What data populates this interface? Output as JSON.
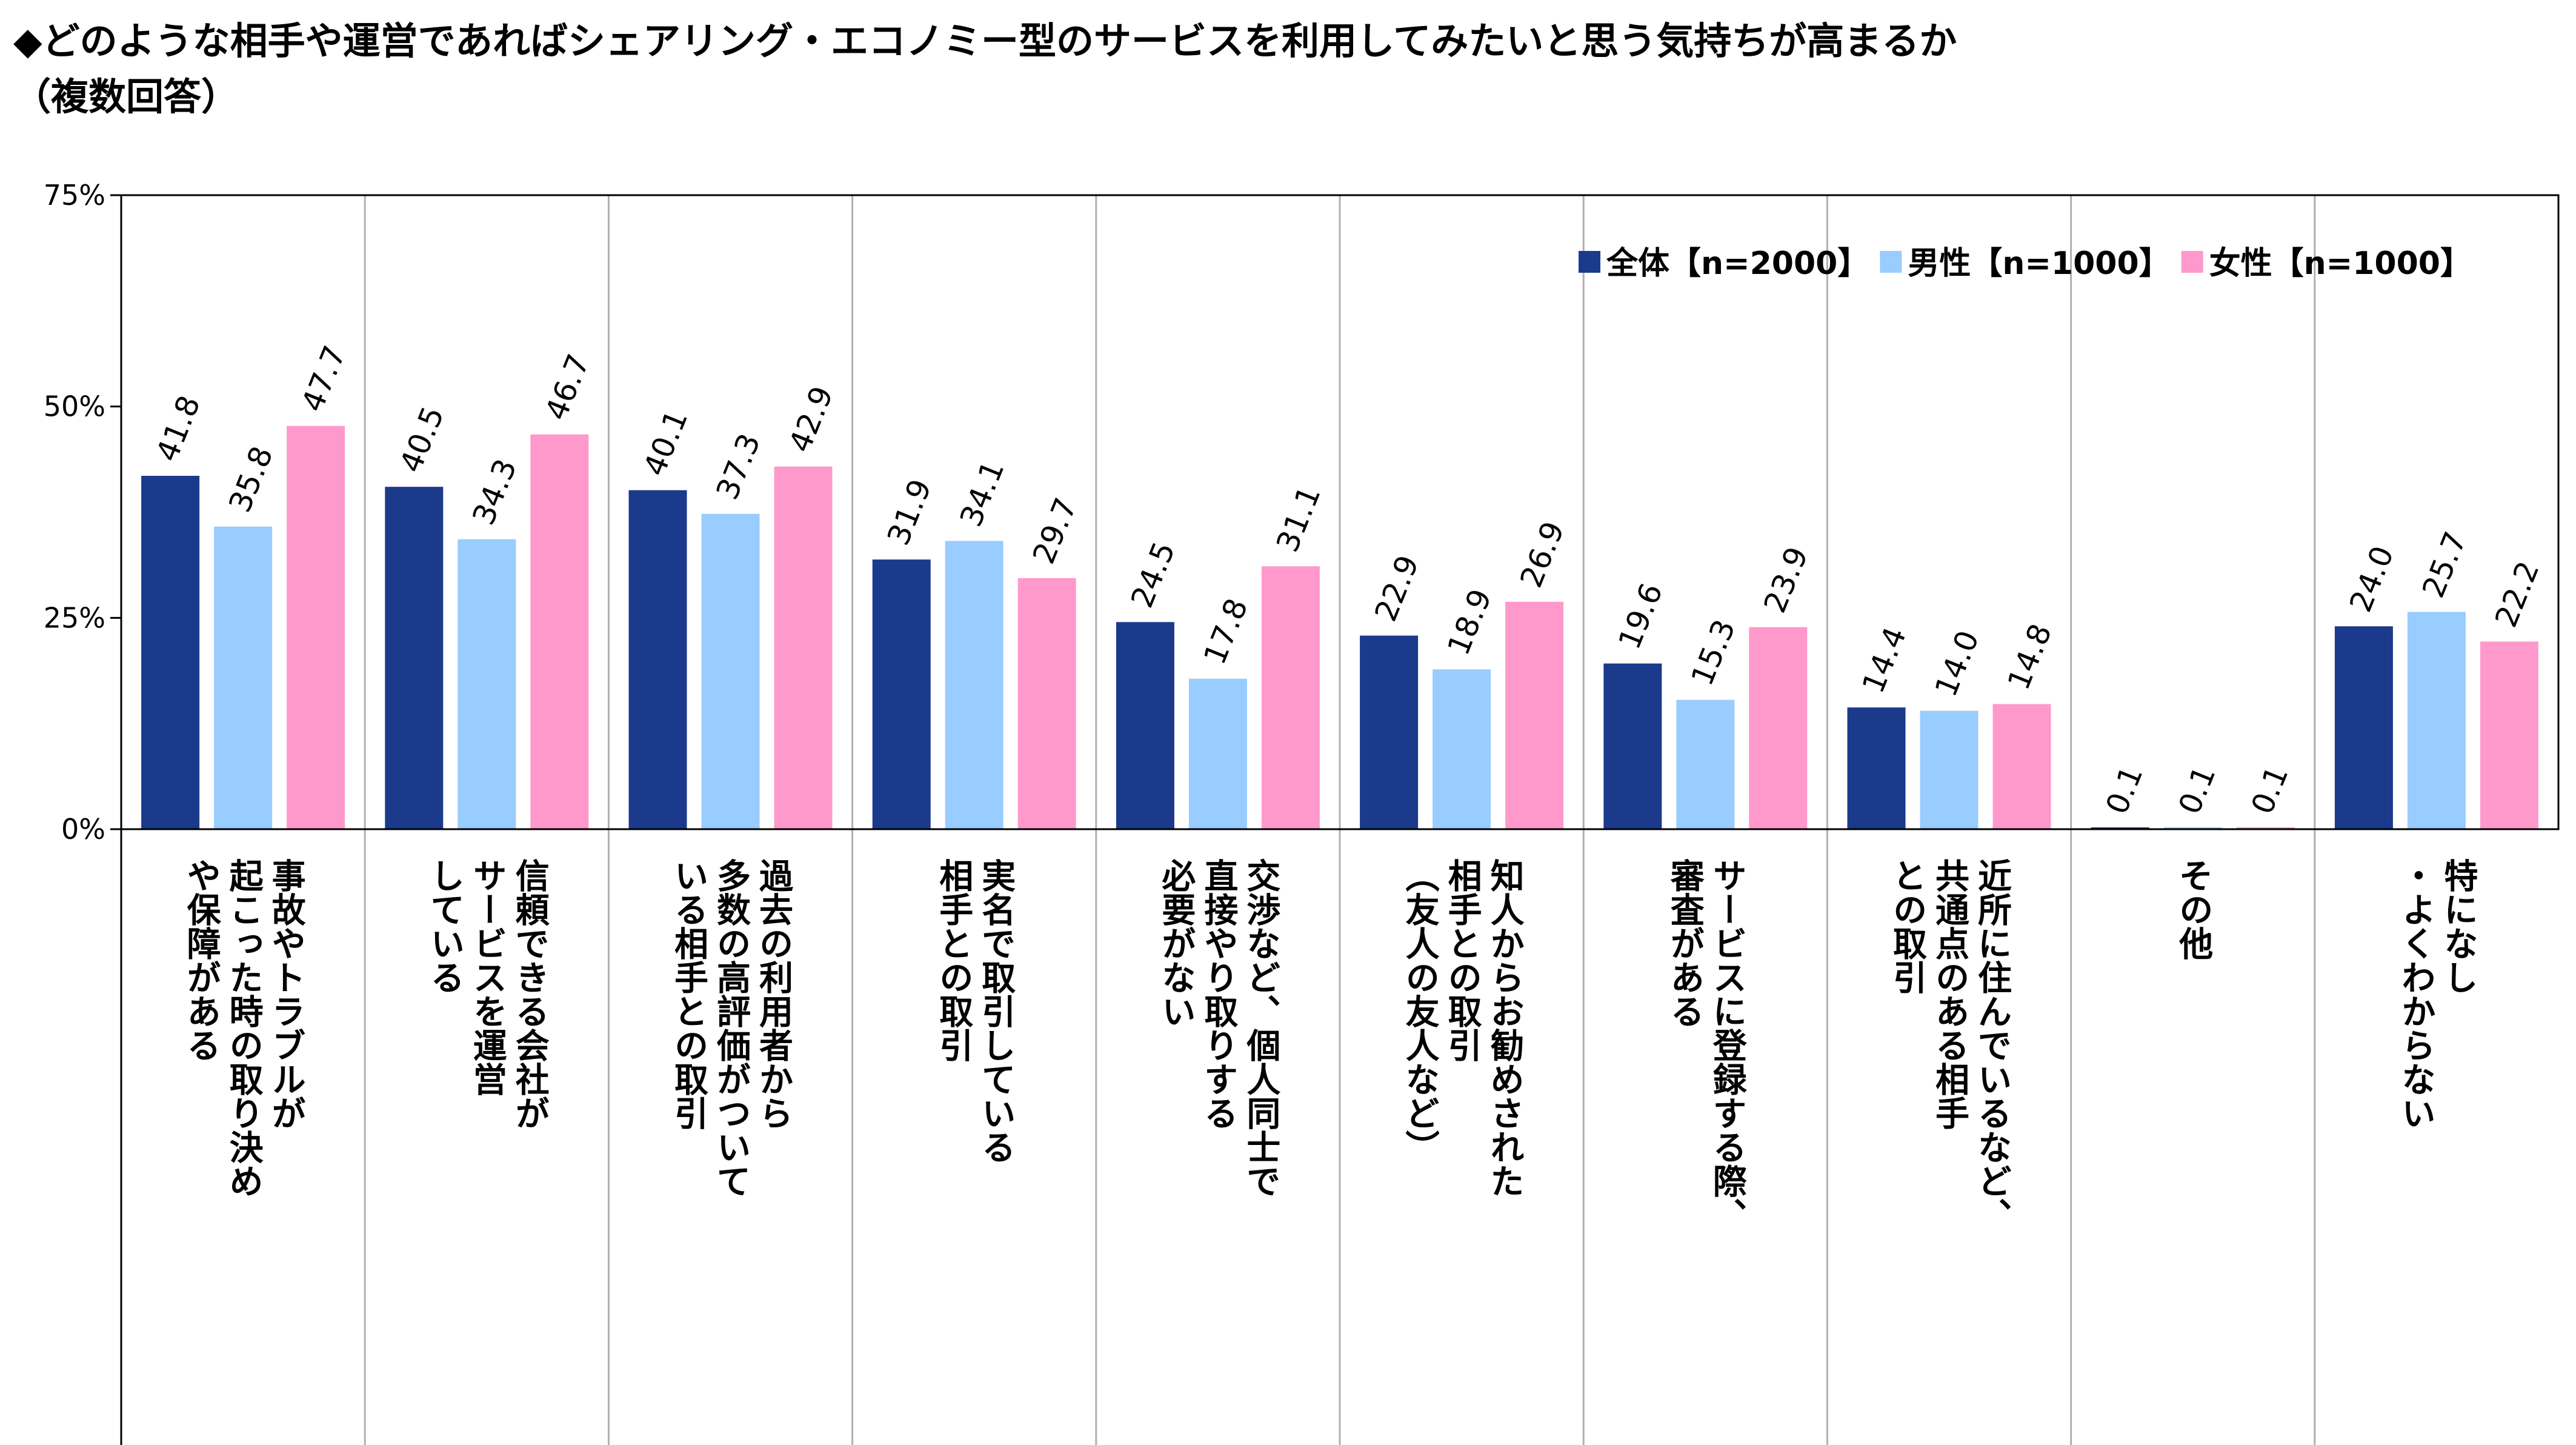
{
  "title": {
    "line1": "◆どのような相手や運営であればシェアリング・エコノミー型のサービスを利用してみたいと思う気持ちが高まるか",
    "line2": "（複数回答）"
  },
  "colors": {
    "series": [
      "#1b3a8c",
      "#99ccff",
      "#ff99cc"
    ],
    "grid": "#b0b0b0",
    "axis": "#000000"
  },
  "chart_data": {
    "type": "bar",
    "y_ticks": [
      "0%",
      "25%",
      "50%",
      "75%"
    ],
    "ylim": [
      0,
      75
    ],
    "grid": "vertical separators between categories",
    "legend_position": "top-right",
    "categories": [
      "事故やトラブルが\n起こった時の取り決め\nや保障がある",
      "信頼できる会社が\nサービスを運営\nしている",
      "過去の利用者から\n多数の高評価がついて\nいる相手との取引",
      "実名で取引している\n相手との取引",
      "交渉など、個人同士で\n直接やり取りする\n必要がない",
      "知人からお勧めされた\n相手との取引\n（友人の友人など）",
      "サービスに登録する際、\n審査がある",
      "近所に住んでいるなど、\n共通点のある相手\nとの取引",
      "その他",
      "特になし\n・よくわからない"
    ],
    "series": [
      {
        "name": "全体【n=2000】",
        "values": [
          41.8,
          40.5,
          40.1,
          31.9,
          24.5,
          22.9,
          19.6,
          14.4,
          0.1,
          24.0
        ],
        "labels": [
          "41.8",
          "40.5",
          "40.1",
          "31.9",
          "24.5",
          "22.9",
          "19.6",
          "14.4",
          "0.1",
          "24.0"
        ]
      },
      {
        "name": "男性【n=1000】",
        "values": [
          35.8,
          34.3,
          37.3,
          34.1,
          17.8,
          18.9,
          15.3,
          14.0,
          0.1,
          25.7
        ],
        "labels": [
          "35.8",
          "34.3",
          "37.3",
          "34.1",
          "17.8",
          "18.9",
          "15.3",
          "14.0",
          "0.1",
          "25.7"
        ]
      },
      {
        "name": "女性【n=1000】",
        "values": [
          47.7,
          46.7,
          42.9,
          29.7,
          31.1,
          26.9,
          23.9,
          14.8,
          0.1,
          22.2
        ],
        "labels": [
          "47.7",
          "46.7",
          "42.9",
          "29.7",
          "31.1",
          "26.9",
          "23.9",
          "14.8",
          "0.1",
          "22.2"
        ]
      }
    ]
  }
}
